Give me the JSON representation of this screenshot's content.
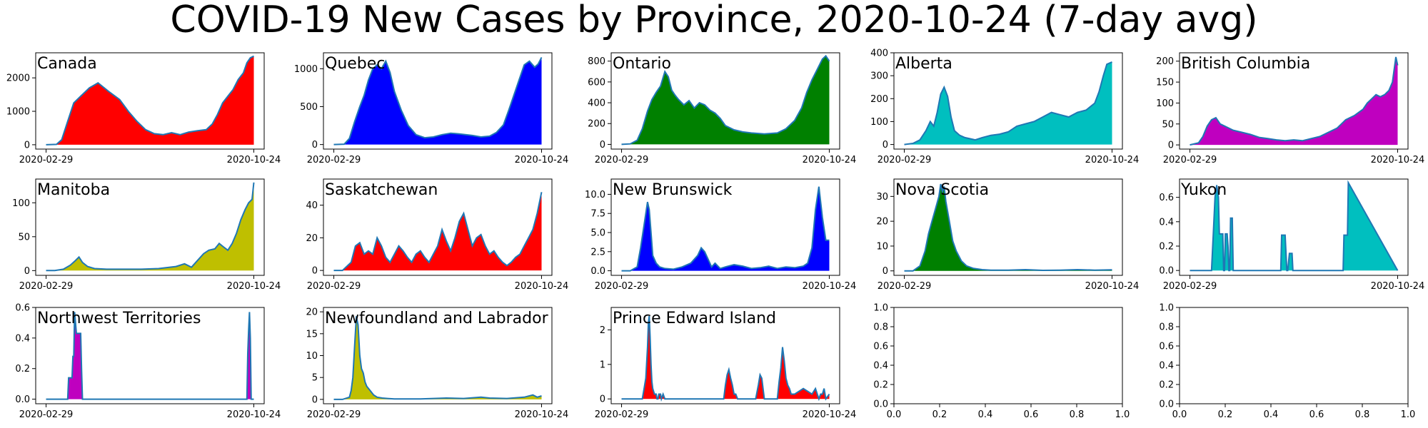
{
  "title": "COVID-19 New Cases by Province, 2020-10-24 (7-day avg)",
  "colors": {
    "line": "#1f77b4",
    "red": "#ff0000",
    "blue": "#0000ff",
    "green": "#008000",
    "cyan": "#00bfbf",
    "magenta": "#bf00bf",
    "olive": "#bfbf00"
  },
  "chart_data": [
    {
      "type": "area",
      "title": "Canada",
      "fill": "#ff0000",
      "xticks": [
        "2020-02-29",
        "2020-10-24"
      ],
      "ylim": [
        -130,
        2750
      ],
      "yticks": [
        0,
        1000,
        2000
      ],
      "x": [
        0,
        12,
        18,
        25,
        32,
        40,
        50,
        60,
        72,
        85,
        95,
        105,
        115,
        125,
        135,
        145,
        155,
        165,
        175,
        185,
        192,
        198,
        204,
        210,
        216,
        222,
        228,
        232,
        236,
        240
      ],
      "values": [
        0,
        10,
        150,
        700,
        1250,
        1450,
        1700,
        1850,
        1600,
        1350,
        1000,
        700,
        450,
        330,
        300,
        360,
        300,
        380,
        420,
        450,
        620,
        900,
        1250,
        1450,
        1650,
        1950,
        2150,
        2450,
        2600,
        2650
      ]
    },
    {
      "type": "area",
      "title": "Quebec",
      "fill": "#0000ff",
      "xticks": [
        "2020-02-29",
        "2020-10-24"
      ],
      "ylim": [
        -60,
        1210
      ],
      "yticks": [
        0,
        500,
        1000
      ],
      "x": [
        0,
        12,
        18,
        24,
        30,
        35,
        40,
        45,
        50,
        55,
        60,
        65,
        70,
        78,
        86,
        95,
        105,
        115,
        125,
        135,
        145,
        160,
        170,
        180,
        188,
        196,
        202,
        208,
        214,
        220,
        226,
        232,
        236,
        240
      ],
      "values": [
        0,
        5,
        80,
        300,
        500,
        650,
        850,
        1000,
        1050,
        1000,
        1100,
        950,
        700,
        450,
        250,
        130,
        90,
        100,
        130,
        150,
        140,
        120,
        100,
        110,
        160,
        260,
        450,
        650,
        850,
        1050,
        1100,
        1020,
        1060,
        1150
      ]
    },
    {
      "type": "area",
      "title": "Ontario",
      "fill": "#008000",
      "xticks": [
        "2020-02-29",
        "2020-10-24"
      ],
      "ylim": [
        -45,
        880
      ],
      "yticks": [
        0,
        200,
        400,
        600,
        800
      ],
      "x": [
        0,
        10,
        18,
        24,
        30,
        35,
        40,
        45,
        50,
        54,
        58,
        62,
        66,
        72,
        78,
        84,
        90,
        96,
        102,
        108,
        114,
        120,
        130,
        140,
        150,
        165,
        180,
        190,
        200,
        208,
        214,
        220,
        226,
        232,
        236,
        240
      ],
      "values": [
        0,
        5,
        40,
        150,
        320,
        430,
        500,
        560,
        700,
        650,
        520,
        470,
        430,
        380,
        420,
        350,
        400,
        380,
        330,
        300,
        250,
        180,
        140,
        120,
        110,
        100,
        110,
        150,
        230,
        350,
        500,
        620,
        720,
        820,
        850,
        800
      ]
    },
    {
      "type": "area",
      "title": "Alberta",
      "fill": "#00bfbf",
      "xticks": [
        "2020-02-29",
        "2020-10-24"
      ],
      "ylim": [
        -20,
        400
      ],
      "yticks": [
        0,
        100,
        200,
        300,
        400
      ],
      "x": [
        0,
        10,
        18,
        25,
        30,
        34,
        38,
        42,
        46,
        50,
        54,
        58,
        64,
        70,
        76,
        82,
        90,
        100,
        110,
        120,
        130,
        140,
        150,
        160,
        170,
        180,
        190,
        200,
        210,
        220,
        225,
        230,
        234,
        240
      ],
      "values": [
        0,
        5,
        20,
        60,
        100,
        80,
        140,
        220,
        250,
        210,
        120,
        60,
        40,
        30,
        25,
        20,
        30,
        40,
        45,
        55,
        80,
        90,
        100,
        120,
        140,
        130,
        120,
        140,
        150,
        180,
        230,
        300,
        350,
        360
      ]
    },
    {
      "type": "area",
      "title": "British Columbia",
      "fill": "#bf00bf",
      "xticks": [
        "2020-02-29",
        "2020-10-24"
      ],
      "ylim": [
        -10,
        220
      ],
      "yticks": [
        0,
        50,
        100,
        150,
        200
      ],
      "x": [
        0,
        10,
        15,
        20,
        25,
        30,
        35,
        40,
        50,
        60,
        70,
        80,
        90,
        100,
        110,
        120,
        130,
        140,
        150,
        160,
        170,
        180,
        190,
        200,
        205,
        210,
        215,
        220,
        225,
        230,
        234,
        238,
        240
      ],
      "values": [
        0,
        5,
        20,
        45,
        60,
        65,
        50,
        45,
        35,
        30,
        25,
        18,
        15,
        12,
        10,
        12,
        10,
        15,
        20,
        30,
        40,
        60,
        70,
        85,
        100,
        110,
        120,
        115,
        120,
        130,
        150,
        210,
        190
      ]
    },
    {
      "type": "area",
      "title": "Manitoba",
      "fill": "#bfbf00",
      "xticks": [
        "2020-02-29",
        "2020-10-24"
      ],
      "ylim": [
        -7,
        135
      ],
      "yticks": [
        0,
        50,
        100
      ],
      "x": [
        0,
        10,
        20,
        28,
        34,
        38,
        42,
        48,
        56,
        70,
        90,
        110,
        130,
        150,
        160,
        168,
        175,
        182,
        188,
        195,
        200,
        205,
        210,
        215,
        220,
        225,
        230,
        234,
        238,
        240
      ],
      "values": [
        0,
        0,
        2,
        8,
        15,
        20,
        12,
        6,
        3,
        2,
        2,
        2,
        3,
        6,
        10,
        5,
        15,
        25,
        30,
        32,
        40,
        35,
        30,
        40,
        55,
        75,
        90,
        100,
        105,
        130
      ]
    },
    {
      "type": "area",
      "title": "Saskatchewan",
      "fill": "#ff0000",
      "xticks": [
        "2020-02-29",
        "2020-10-24"
      ],
      "ylim": [
        -3,
        56
      ],
      "yticks": [
        0,
        20,
        40
      ],
      "x": [
        0,
        10,
        20,
        25,
        30,
        35,
        40,
        45,
        50,
        55,
        60,
        65,
        70,
        75,
        80,
        85,
        90,
        95,
        100,
        105,
        110,
        115,
        120,
        125,
        130,
        135,
        140,
        145,
        150,
        155,
        160,
        165,
        170,
        175,
        180,
        185,
        190,
        195,
        200,
        205,
        210,
        215,
        220,
        225,
        230,
        235,
        240
      ],
      "values": [
        0,
        0,
        5,
        15,
        17,
        10,
        12,
        10,
        20,
        15,
        8,
        5,
        10,
        15,
        12,
        8,
        5,
        10,
        12,
        8,
        5,
        10,
        15,
        25,
        18,
        12,
        20,
        30,
        35,
        25,
        15,
        20,
        22,
        15,
        10,
        12,
        8,
        5,
        3,
        5,
        8,
        10,
        15,
        20,
        25,
        35,
        48
      ]
    },
    {
      "type": "area",
      "title": "New Brunswick",
      "fill": "#0000ff",
      "xticks": [
        "2020-02-29",
        "2020-10-24"
      ],
      "ylim": [
        -0.6,
        12
      ],
      "yticks": [
        0.0,
        2.5,
        5.0,
        7.5,
        10.0
      ],
      "x": [
        0,
        10,
        18,
        22,
        26,
        30,
        32,
        34,
        36,
        40,
        44,
        50,
        60,
        70,
        80,
        88,
        92,
        96,
        100,
        104,
        108,
        114,
        120,
        130,
        140,
        150,
        160,
        170,
        180,
        190,
        200,
        210,
        215,
        220,
        224,
        228,
        232,
        236,
        240
      ],
      "values": [
        0,
        0,
        0.5,
        3,
        6,
        9,
        8,
        5,
        2,
        1,
        0.5,
        0.3,
        0.2,
        0.5,
        1,
        2,
        3,
        2.5,
        1.5,
        0.5,
        1,
        0.3,
        0.5,
        0.8,
        0.6,
        0.3,
        0.4,
        0.6,
        0.3,
        0.5,
        0.4,
        0.6,
        1,
        3,
        8,
        11,
        7,
        4,
        4
      ]
    },
    {
      "type": "area",
      "title": "Nova Scotia",
      "fill": "#008000",
      "xticks": [
        "2020-02-29",
        "2020-10-24"
      ],
      "ylim": [
        -1.8,
        37
      ],
      "yticks": [
        0,
        10,
        20,
        30
      ],
      "x": [
        0,
        10,
        18,
        24,
        28,
        32,
        36,
        40,
        42,
        44,
        46,
        48,
        52,
        56,
        60,
        66,
        72,
        80,
        90,
        100,
        120,
        140,
        160,
        180,
        200,
        220,
        240
      ],
      "values": [
        0,
        0,
        2,
        8,
        15,
        20,
        25,
        30,
        35,
        32,
        34,
        28,
        20,
        12,
        8,
        4,
        2,
        1,
        0.5,
        0.3,
        0.3,
        0.5,
        0.2,
        0.3,
        0.5,
        0.3,
        0.4
      ]
    },
    {
      "type": "area",
      "title": "Yukon",
      "fill": "#00bfbf",
      "xticks": [
        "2020-02-29",
        "2020-10-24"
      ],
      "ylim": [
        -0.04,
        0.75
      ],
      "yticks": [
        0.0,
        0.2,
        0.4,
        0.6
      ],
      "x": [
        0,
        20,
        25,
        27,
        29,
        31,
        33,
        34,
        35,
        36,
        38,
        39,
        40,
        41,
        43,
        44,
        45,
        46,
        47,
        48,
        49,
        50,
        100,
        105,
        106,
        109,
        110,
        112,
        113,
        115,
        116,
        118,
        119,
        120,
        160,
        177,
        178,
        181,
        182,
        183,
        240
      ],
      "values": [
        0,
        0,
        0,
        0.3,
        0.6,
        0.7,
        0.6,
        0.3,
        0.3,
        0.3,
        0.3,
        0,
        0,
        0.3,
        0.3,
        0.2,
        0,
        0,
        0.43,
        0.43,
        0.43,
        0,
        0,
        0,
        0.29,
        0.29,
        0.29,
        0,
        0,
        0.14,
        0.14,
        0.14,
        0,
        0,
        0,
        0,
        0.29,
        0.29,
        0.29,
        0.72,
        0
      ]
    },
    {
      "type": "area",
      "title": "Northwest Territories",
      "fill": "#bf00bf",
      "xticks": [
        "2020-02-29",
        "2020-10-24"
      ],
      "ylim": [
        -0.03,
        0.6
      ],
      "yticks": [
        0.0,
        0.2,
        0.4,
        0.6
      ],
      "x": [
        0,
        22,
        25,
        26,
        28,
        29,
        30,
        31,
        32,
        33,
        35,
        36,
        37,
        38,
        39,
        40,
        41,
        42,
        43,
        44,
        45,
        228,
        232,
        233,
        234,
        235,
        236,
        237,
        240
      ],
      "values": [
        0,
        0,
        0,
        0.14,
        0.14,
        0.14,
        0.14,
        0.28,
        0.28,
        0.57,
        0.43,
        0.43,
        0.43,
        0.43,
        0.43,
        0.43,
        0.2,
        0,
        0,
        0,
        0,
        0,
        0,
        0.3,
        0.45,
        0.57,
        0.4,
        0,
        0
      ]
    },
    {
      "type": "area",
      "title": "Newfoundland and Labrador",
      "fill": "#bfbf00",
      "xticks": [
        "2020-02-29",
        "2020-10-24"
      ],
      "ylim": [
        -1,
        21
      ],
      "yticks": [
        0,
        5,
        10,
        15,
        20
      ],
      "x": [
        0,
        10,
        18,
        20,
        22,
        24,
        26,
        28,
        30,
        32,
        34,
        36,
        38,
        42,
        46,
        50,
        56,
        62,
        70,
        80,
        100,
        130,
        150,
        170,
        180,
        200,
        220,
        230,
        235,
        240
      ],
      "values": [
        0,
        0,
        0.5,
        2,
        5,
        12,
        19,
        17,
        10,
        7,
        6,
        4,
        3,
        2,
        1,
        0.5,
        0.3,
        0.2,
        0.1,
        0.1,
        0.1,
        0.3,
        0.2,
        0.5,
        0.3,
        0.2,
        0.5,
        1,
        0.5,
        0.8
      ]
    },
    {
      "type": "area",
      "title": "Prince Edward Island",
      "fill": "#ff0000",
      "xticks": [
        "2020-02-29",
        "2020-10-24"
      ],
      "ylim": [
        -0.14,
        2.65
      ],
      "yticks": [
        0,
        1,
        2
      ],
      "x": [
        0,
        20,
        24,
        26,
        28,
        30,
        31,
        32,
        33,
        34,
        35,
        36,
        38,
        40,
        41,
        42,
        43,
        45,
        46,
        48,
        50,
        60,
        118,
        120,
        122,
        124,
        126,
        128,
        130,
        132,
        134,
        140,
        155,
        158,
        160,
        162,
        165,
        180,
        182,
        184,
        186,
        188,
        190,
        192,
        194,
        196,
        200,
        210,
        220,
        224,
        228,
        230,
        232,
        234,
        236,
        240
      ],
      "values": [
        0,
        0,
        0,
        0.3,
        0.6,
        1.5,
        2.2,
        2.4,
        1.8,
        1,
        0.5,
        0.3,
        0.14,
        0.14,
        0,
        0,
        0.14,
        0.14,
        0,
        0.14,
        0,
        0,
        0,
        0.4,
        0.7,
        0.85,
        0.6,
        0.4,
        0.14,
        0.14,
        0,
        0,
        0,
        0.4,
        0.7,
        0.6,
        0,
        0,
        0.5,
        0.9,
        1.5,
        1.1,
        0.6,
        0.4,
        0.3,
        0.14,
        0.14,
        0.3,
        0.14,
        0.3,
        0,
        0.14,
        0.14,
        0.3,
        0,
        0.14
      ]
    },
    {
      "type": "area",
      "title": "",
      "fill": "",
      "empty": true,
      "xticks": [
        "0.0",
        "0.2",
        "0.4",
        "0.6",
        "0.8",
        "1.0"
      ],
      "yticks": [
        "0.0",
        "0.2",
        "0.4",
        "0.6",
        "0.8",
        "1.0"
      ],
      "ylim": [
        0,
        1
      ],
      "xlim": [
        0,
        1
      ]
    },
    {
      "type": "area",
      "title": "",
      "fill": "",
      "empty": true,
      "xticks": [
        "0.0",
        "0.2",
        "0.4",
        "0.6",
        "0.8",
        "1.0"
      ],
      "yticks": [
        "0.0",
        "0.2",
        "0.4",
        "0.6",
        "0.8",
        "1.0"
      ],
      "ylim": [
        0,
        1
      ],
      "xlim": [
        0,
        1
      ]
    }
  ]
}
